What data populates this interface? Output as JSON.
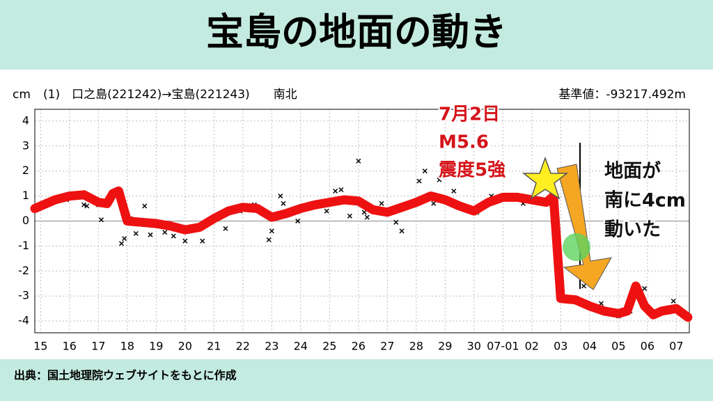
{
  "header": {
    "title": "宝島の地面の動き"
  },
  "chart_data": {
    "type": "line",
    "y_label": "cm",
    "subtitle": "(1)　口之島(221242)→宝島(221243)　　南北",
    "reference": "基準値：-93217.492m",
    "xlim": [
      -0.2,
      22.45
    ],
    "xticks": [
      {
        "value": 0,
        "label": "15"
      },
      {
        "value": 1,
        "label": "16"
      },
      {
        "value": 2,
        "label": "17"
      },
      {
        "value": 3,
        "label": "18"
      },
      {
        "value": 4,
        "label": "19"
      },
      {
        "value": 5,
        "label": "20"
      },
      {
        "value": 6,
        "label": "21"
      },
      {
        "value": 7,
        "label": "22"
      },
      {
        "value": 8,
        "label": "23"
      },
      {
        "value": 9,
        "label": "24"
      },
      {
        "value": 10,
        "label": "25"
      },
      {
        "value": 11,
        "label": "26"
      },
      {
        "value": 12,
        "label": "27"
      },
      {
        "value": 13,
        "label": "28"
      },
      {
        "value": 14,
        "label": "29"
      },
      {
        "value": 15,
        "label": "30"
      },
      {
        "value": 16,
        "label": "07-01"
      },
      {
        "value": 17,
        "label": "02"
      },
      {
        "value": 18,
        "label": "03"
      },
      {
        "value": 19,
        "label": "04"
      },
      {
        "value": 20,
        "label": "05"
      },
      {
        "value": 21,
        "label": "06"
      },
      {
        "value": 22,
        "label": "07"
      }
    ],
    "ylim": [
      -4.47,
      4.47
    ],
    "yticks": [
      -4,
      -3,
      -2,
      -1,
      0,
      1,
      2,
      3,
      4
    ],
    "grid": true,
    "trend": {
      "color": "#ee1111",
      "x": [
        -0.2,
        0.5,
        1,
        1.5,
        2,
        2.3,
        2.5,
        2.7,
        3,
        3.5,
        4,
        4.5,
        5,
        5.5,
        6,
        6.5,
        7,
        7.5,
        8,
        8.5,
        9,
        9.5,
        10,
        10.5,
        11,
        11.5,
        12,
        12.5,
        13,
        13.5,
        14,
        14.5,
        15,
        15.5,
        16,
        16.5,
        17,
        17.5,
        17.75,
        18,
        18.5,
        19,
        19.5,
        20,
        20.3,
        20.6,
        20.9,
        21.2,
        21.5,
        22,
        22.4
      ],
      "values": [
        0.5,
        0.85,
        1.0,
        1.05,
        0.75,
        0.7,
        1.1,
        1.2,
        0.0,
        -0.05,
        -0.1,
        -0.2,
        -0.35,
        -0.25,
        0.1,
        0.4,
        0.55,
        0.5,
        0.15,
        0.3,
        0.5,
        0.65,
        0.75,
        0.85,
        0.8,
        0.45,
        0.35,
        0.55,
        0.75,
        1.0,
        0.85,
        0.6,
        0.4,
        0.75,
        0.95,
        0.95,
        0.85,
        0.75,
        1.0,
        -3.1,
        -3.15,
        -3.4,
        -3.6,
        -3.7,
        -3.6,
        -2.6,
        -3.4,
        -3.75,
        -3.6,
        -3.5,
        -3.85
      ]
    },
    "observations": {
      "color": "#111111",
      "x": [
        0.9,
        1.5,
        1.6,
        2.0,
        2.1,
        2.8,
        2.9,
        3.1,
        3.3,
        3.6,
        3.8,
        4.3,
        4.6,
        5.0,
        5.6,
        6.4,
        6.9,
        7.4,
        7.9,
        8.0,
        8.3,
        8.4,
        8.9,
        9.4,
        9.9,
        10.2,
        10.4,
        10.7,
        11.0,
        11.2,
        11.3,
        11.8,
        12.3,
        12.5,
        13.1,
        13.3,
        13.6,
        13.8,
        14.3,
        15.1,
        15.6,
        16.2,
        16.7,
        17.6,
        18.5,
        18.8,
        19.4,
        20.0,
        20.4,
        20.9,
        21.4,
        21.9
      ],
      "values": [
        0.85,
        0.65,
        0.6,
        0.65,
        0.05,
        -0.9,
        -0.7,
        0.1,
        -0.5,
        0.6,
        -0.55,
        -0.45,
        -0.6,
        -0.8,
        -0.8,
        -0.3,
        0.4,
        0.65,
        -0.75,
        -0.4,
        1.0,
        0.7,
        0.0,
        0.7,
        0.4,
        1.2,
        1.25,
        0.2,
        2.4,
        0.35,
        0.15,
        0.7,
        -0.05,
        -0.4,
        1.6,
        2.0,
        0.7,
        1.65,
        1.2,
        0.35,
        1.0,
        0.9,
        0.7,
        0.9,
        -3.2,
        -2.6,
        -3.3,
        -3.8,
        -3.6,
        -2.7,
        -3.6,
        -3.2
      ]
    },
    "annotations": {
      "event": [
        "7月2日",
        "M5.6",
        "震度5強"
      ],
      "movement": [
        "地面が",
        "南に4cm",
        "動いた"
      ]
    }
  },
  "footer": {
    "source": "出典：国土地理院ウェブサイトをもとに作成"
  }
}
